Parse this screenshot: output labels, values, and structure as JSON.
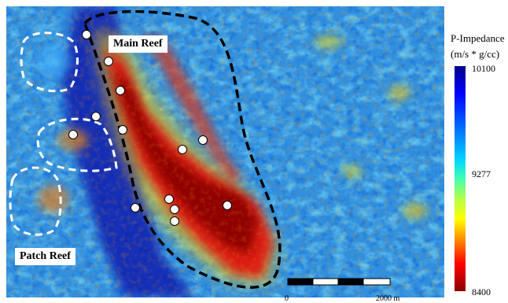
{
  "labels": {
    "main_reef": "Main Reef",
    "patch_reef": "Patch Reef"
  },
  "legend": {
    "title_line1": "P-Impedance",
    "title_line2": "(m/s * g/cc)",
    "max": "10100",
    "mid": "9277",
    "min": "8400",
    "colormap": [
      "#00008b",
      "#0000ff",
      "#0080ff",
      "#00d8ff",
      "#40ffb0",
      "#c0ff40",
      "#ffff00",
      "#ff8000",
      "#ff0000",
      "#8b0000"
    ]
  },
  "scale_bar": {
    "start_label": "0",
    "end_label": "2000 m"
  },
  "colors": {
    "background_field": "#2f8fe0",
    "reef_core": "#8b0000",
    "reef_outline": "#000000",
    "patch_outline": "#ffffff"
  }
}
